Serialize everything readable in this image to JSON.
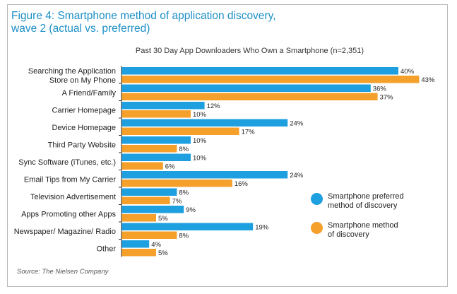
{
  "figure": {
    "title_line1": "Figure 4: Smartphone method of application discovery,",
    "title_line2": "wave 2 (actual vs. preferred)",
    "source": "Source: The Nielsen Company"
  },
  "colors": {
    "preferred": "#1ea0e0",
    "actual": "#f5a02b",
    "axis": "#333333"
  },
  "chart_data": {
    "type": "bar",
    "orientation": "horizontal",
    "title": "Past 30 Day App Downloaders Who Own a Smartphone (n=2,351)",
    "categories": [
      [
        "Searching the Application",
        "Store on My Phone"
      ],
      [
        "A Friend/Family"
      ],
      [
        "Carrier Homepage"
      ],
      [
        "Device Homepage"
      ],
      [
        "Third Party Website"
      ],
      [
        "Sync Software (iTunes, etc.)"
      ],
      [
        "Email Tips from My Carrier"
      ],
      [
        "Television Advertisement"
      ],
      [
        "Apps Promoting other Apps"
      ],
      [
        "Newspaper/ Magazine/ Radio"
      ],
      [
        "Other"
      ]
    ],
    "series": [
      {
        "name": "Smartphone preferred method of discovery",
        "legend_lines": [
          "Smartphone preferred",
          "method of discovery"
        ],
        "color": "#1ea0e0",
        "values": [
          40,
          36,
          12,
          24,
          10,
          10,
          24,
          8,
          9,
          19,
          4
        ]
      },
      {
        "name": "Smartphone method of discovery",
        "legend_lines": [
          "Smartphone method",
          "of discovery"
        ],
        "color": "#f5a02b",
        "values": [
          43,
          37,
          10,
          17,
          8,
          6,
          16,
          7,
          5,
          8,
          5
        ]
      }
    ],
    "value_suffix": "%",
    "xlim": [
      0,
      45
    ],
    "grid": false,
    "legend_position": "right"
  }
}
